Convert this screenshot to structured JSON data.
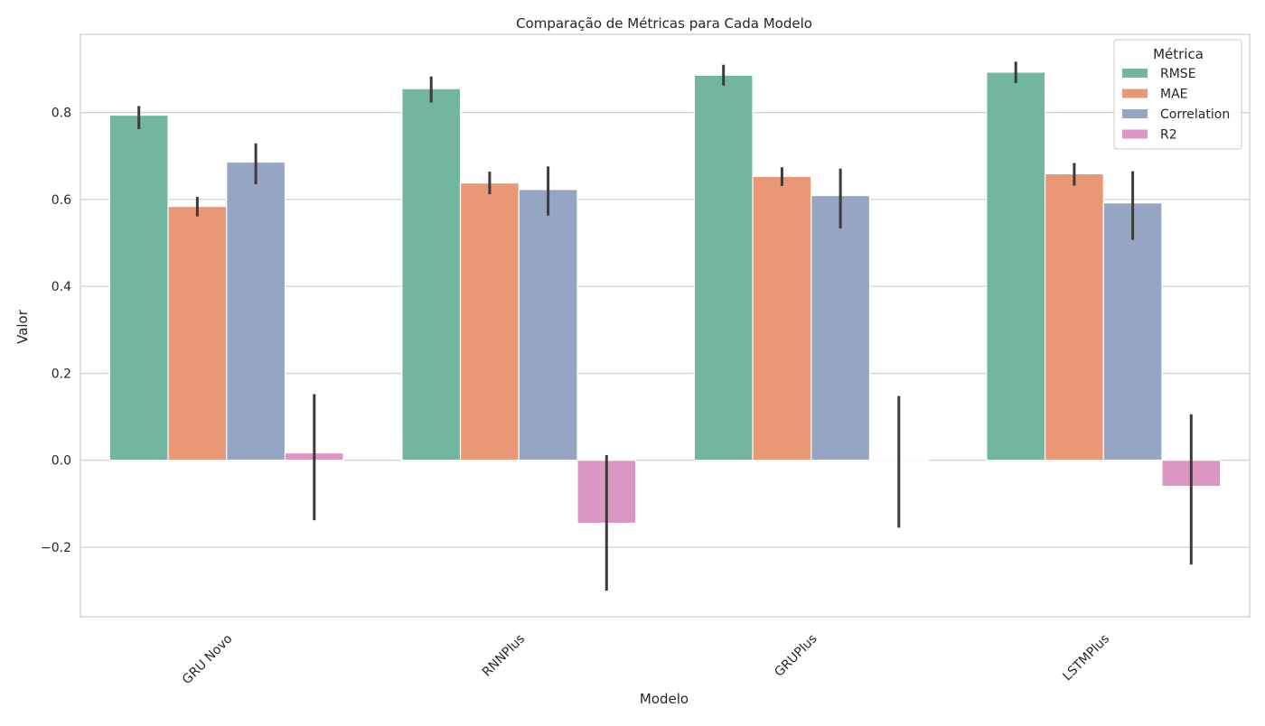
{
  "chart_data": {
    "type": "bar",
    "title": "Comparação de Métricas para Cada Modelo",
    "xlabel": "Modelo",
    "ylabel": "Valor",
    "categories": [
      "GRU Novo",
      "RNNPlus",
      "GRUPlus",
      "LSTMPlus"
    ],
    "ylim": [
      -0.36,
      0.98
    ],
    "yticks": [
      -0.2,
      0.0,
      0.2,
      0.4,
      0.6,
      0.8
    ],
    "ytick_labels": [
      "−0.2",
      "0.0",
      "0.2",
      "0.4",
      "0.6",
      "0.8"
    ],
    "grid": true,
    "legend": {
      "title": "Métrica",
      "position": "top-right"
    },
    "series": [
      {
        "name": "RMSE",
        "color": "#72b5a0",
        "values": [
          0.794,
          0.855,
          0.886,
          0.893
        ],
        "err_low": [
          0.762,
          0.823,
          0.862,
          0.868
        ],
        "err_high": [
          0.815,
          0.883,
          0.91,
          0.917
        ]
      },
      {
        "name": "MAE",
        "color": "#e99774",
        "values": [
          0.584,
          0.638,
          0.653,
          0.659
        ],
        "err_low": [
          0.561,
          0.612,
          0.631,
          0.632
        ],
        "err_high": [
          0.606,
          0.664,
          0.674,
          0.684
        ]
      },
      {
        "name": "Correlation",
        "color": "#96a5c4",
        "values": [
          0.686,
          0.623,
          0.609,
          0.592
        ],
        "err_low": [
          0.635,
          0.563,
          0.533,
          0.507
        ],
        "err_high": [
          0.729,
          0.676,
          0.671,
          0.665
        ]
      },
      {
        "name": "R2",
        "color": "#db97c1",
        "values": [
          0.017,
          -0.145,
          0.002,
          -0.06
        ],
        "err_low": [
          -0.138,
          -0.3,
          -0.155,
          -0.24
        ],
        "err_high": [
          0.152,
          0.012,
          0.148,
          0.106
        ]
      }
    ]
  }
}
